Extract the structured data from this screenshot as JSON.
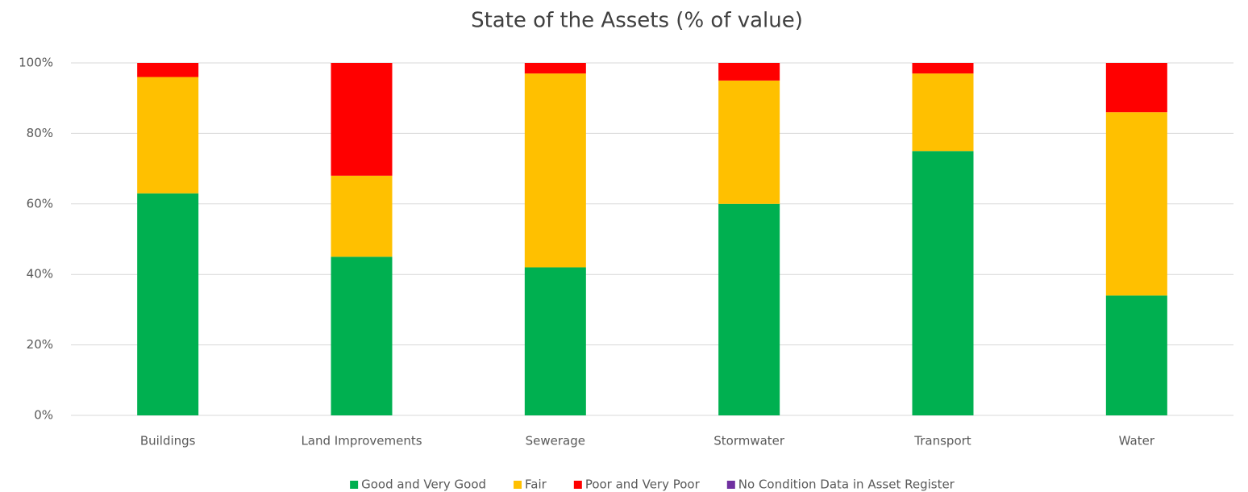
{
  "chart_data": {
    "type": "stacked_bar",
    "title": "State of the Assets (% of value)",
    "categories": [
      "Buildings",
      "Land Improvements",
      "Sewerage",
      "Stormwater",
      "Transport",
      "Water"
    ],
    "series": [
      {
        "name": "Good and Very Good",
        "color": "#00b050",
        "values": [
          63,
          45,
          42,
          60,
          75,
          34
        ]
      },
      {
        "name": "Fair",
        "color": "#ffc000",
        "values": [
          33,
          23,
          55,
          35,
          22,
          52
        ]
      },
      {
        "name": "Poor and Very Poor",
        "color": "#ff0000",
        "values": [
          4,
          32,
          3,
          5,
          3,
          14
        ]
      },
      {
        "name": "No Condition Data in Asset Register",
        "color": "#7030a0",
        "values": [
          0,
          0,
          0,
          0,
          0,
          0
        ]
      }
    ],
    "ylim": [
      0,
      100
    ],
    "yticks": [
      {
        "value": 0,
        "label": "0%"
      },
      {
        "value": 20,
        "label": "20%"
      },
      {
        "value": 40,
        "label": "40%"
      },
      {
        "value": 60,
        "label": "60%"
      },
      {
        "value": 80,
        "label": "80%"
      },
      {
        "value": 100,
        "label": "100%"
      }
    ],
    "grid": true,
    "legend": "bottom"
  }
}
